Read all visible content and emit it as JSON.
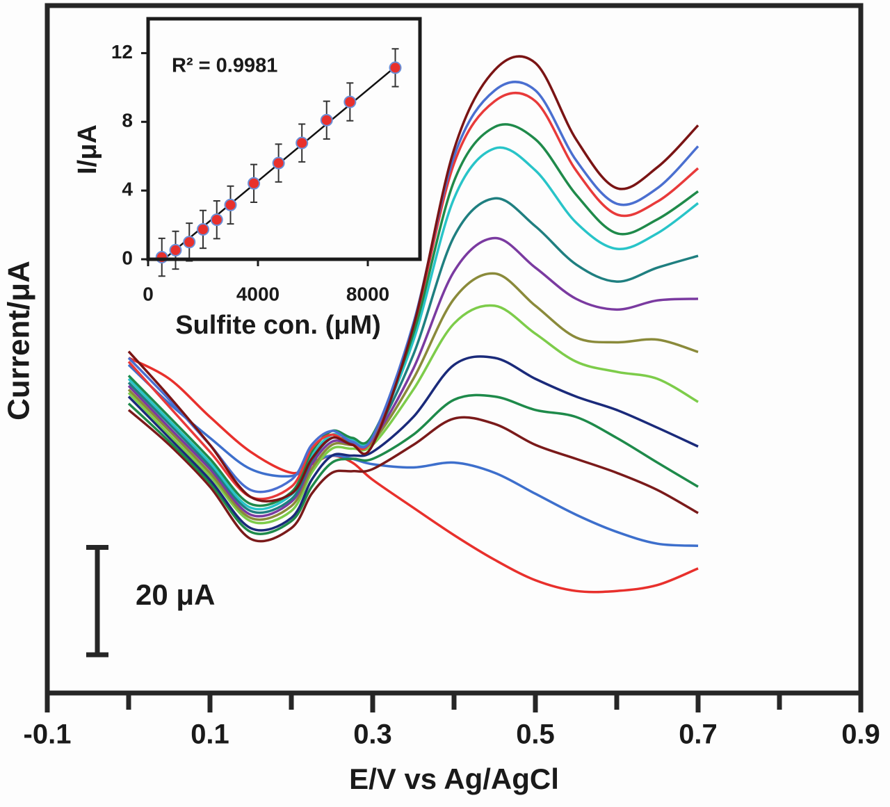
{
  "chart_data": [
    {
      "type": "line",
      "x_label": "E/V vs Ag/AgCl",
      "y_label": "Current/μA",
      "xlim": [
        -0.1,
        0.9
      ],
      "ylim": [
        0,
        128
      ],
      "xticks": [
        -0.1,
        0.1,
        0.3,
        0.5,
        0.7,
        0.9
      ],
      "xminor_ticks": [
        0,
        0.2,
        0.4,
        0.6,
        0.8
      ],
      "scale_bar": {
        "value": 20,
        "label": "20 μA"
      },
      "x": [
        0,
        0.05,
        0.1,
        0.15,
        0.2,
        0.225,
        0.25,
        0.275,
        0.3,
        0.35,
        0.4,
        0.45,
        0.5,
        0.55,
        0.6,
        0.65,
        0.7
      ],
      "series": [
        {
          "color": "#e8302c",
          "values": [
            62.4,
            58.5,
            51.4,
            44.9,
            41.0,
            42.6,
            44.2,
            42.9,
            39.7,
            34.5,
            29.4,
            24.8,
            21.0,
            19.0,
            19.0,
            20.1,
            23.2
          ]
        },
        {
          "color": "#3d6fcc",
          "values": [
            61.1,
            53.9,
            47.5,
            41.7,
            40.4,
            42.9,
            44.2,
            43.6,
            42.6,
            42.0,
            42.9,
            41.0,
            37.1,
            33.2,
            30.0,
            27.8,
            27.4
          ]
        },
        {
          "color": "#7a1a1a",
          "values": [
            52.7,
            46.2,
            38.4,
            28.7,
            30.7,
            37.1,
            41.0,
            41.3,
            41.7,
            46.2,
            51.1,
            50.1,
            46.2,
            43.6,
            41.0,
            37.8,
            33.5
          ]
        },
        {
          "color": "#1e8a4a",
          "values": [
            53.9,
            46.8,
            39.1,
            30.0,
            32.0,
            38.4,
            42.9,
            43.6,
            43.6,
            48.1,
            54.6,
            55.2,
            52.7,
            51.4,
            47.5,
            42.9,
            38.4
          ]
        },
        {
          "color": "#1a2a7a",
          "values": [
            55.2,
            47.5,
            39.7,
            30.7,
            32.6,
            39.7,
            44.2,
            44.2,
            44.9,
            51.4,
            61.1,
            62.4,
            58.5,
            55.2,
            52.7,
            49.4,
            45.9
          ]
        },
        {
          "color": "#7dcc4a",
          "values": [
            55.9,
            48.1,
            40.4,
            32.0,
            33.9,
            41.0,
            45.5,
            45.5,
            46.2,
            56.5,
            68.8,
            72.1,
            66.9,
            61.7,
            59.8,
            58.5,
            54.2
          ]
        },
        {
          "color": "#8a8a3a",
          "values": [
            56.5,
            48.8,
            41.0,
            32.6,
            34.8,
            41.7,
            46.2,
            46.2,
            46.8,
            58.5,
            73.4,
            78.1,
            72.1,
            66.2,
            65.3,
            65.8,
            63.5
          ]
        },
        {
          "color": "#7a3aa0",
          "values": [
            57.2,
            49.4,
            41.7,
            33.2,
            35.6,
            42.6,
            46.8,
            46.4,
            47.2,
            60.4,
            78.5,
            84.7,
            79.2,
            73.4,
            71.4,
            73.1,
            73.4
          ]
        },
        {
          "color": "#1f7f80",
          "values": [
            57.8,
            50.1,
            42.3,
            33.9,
            36.1,
            43.3,
            47.5,
            46.8,
            47.5,
            63.0,
            85.0,
            92.1,
            86.9,
            79.8,
            76.6,
            79.2,
            81.4
          ]
        },
        {
          "color": "#28c4c8",
          "values": [
            58.5,
            50.7,
            42.9,
            34.5,
            36.9,
            44.1,
            48.1,
            47.2,
            47.7,
            65.6,
            92.1,
            101.4,
            97.3,
            87.6,
            82.7,
            85.6,
            91.2
          ]
        },
        {
          "color": "#1f8a4a",
          "values": [
            59.1,
            51.4,
            43.6,
            35.2,
            37.4,
            44.9,
            48.8,
            47.5,
            48.1,
            66.9,
            95.3,
            105.4,
            103.1,
            92.8,
            85.6,
            88.2,
            93.4
          ]
        },
        {
          "color": "#e83a3a",
          "values": [
            61.7,
            53.3,
            44.9,
            36.5,
            38.4,
            45.5,
            48.1,
            46.2,
            47.5,
            68.2,
            98.6,
            110.2,
            110.2,
            97.3,
            89.1,
            91.5,
            97.7
          ]
        },
        {
          "color": "#4a6fd0",
          "values": [
            62.4,
            54.6,
            46.2,
            37.8,
            39.7,
            46.2,
            48.8,
            46.8,
            47.7,
            68.8,
            99.9,
            112.2,
            112.2,
            99.2,
            91.1,
            94.0,
            101.8
          ]
        },
        {
          "color": "#7a1414",
          "values": [
            63.6,
            55.2,
            46.2,
            36.5,
            37.1,
            43.6,
            47.5,
            46.2,
            46.2,
            68.2,
            101.2,
            116.0,
            117.3,
            103.1,
            94.0,
            97.9,
            105.7
          ]
        }
      ]
    },
    {
      "type": "scatter",
      "x_label": "Sulfite con. (μM)",
      "y_label": "I/μA",
      "annotation": "R² = 0.9981",
      "xlim": [
        0,
        10000
      ],
      "ylim": [
        0,
        14
      ],
      "xticks": [
        0,
        4000,
        8000
      ],
      "yticks": [
        0,
        4,
        8,
        12
      ],
      "color": "#e8302c",
      "edge_color": "#6a8fd8",
      "line_color": "#111111",
      "x": [
        500,
        1000,
        1500,
        2000,
        2500,
        3000,
        3850,
        4750,
        5600,
        6500,
        7350,
        9000
      ],
      "values": [
        0.12,
        0.53,
        1.0,
        1.74,
        2.3,
        3.16,
        4.42,
        5.6,
        6.77,
        8.1,
        9.16,
        11.15
      ],
      "errors": [
        1.1,
        1.1,
        1.1,
        1.1,
        1.1,
        1.1,
        1.1,
        1.1,
        1.1,
        1.1,
        1.1,
        1.1
      ],
      "fit_line": {
        "x": [
          500,
          9000
        ],
        "y": [
          -0.1,
          11.2
        ]
      }
    }
  ]
}
